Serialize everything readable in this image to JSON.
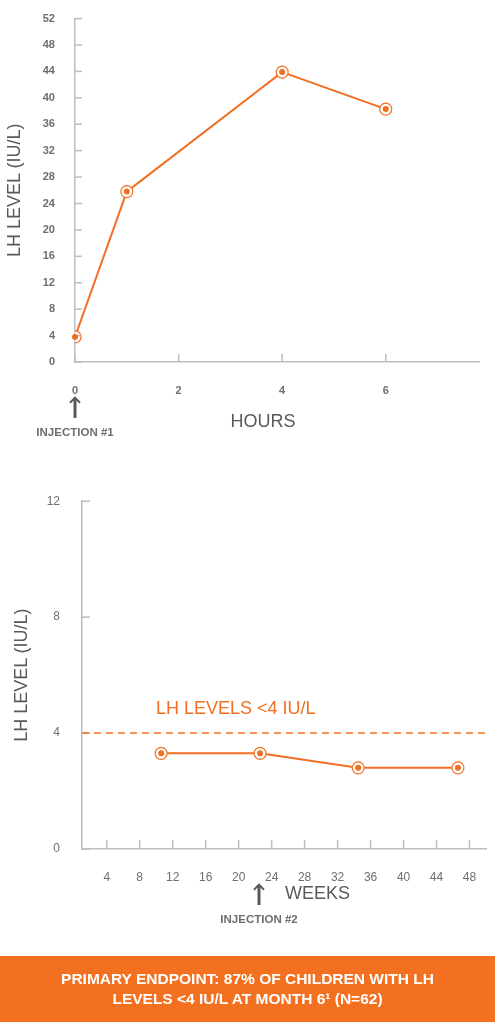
{
  "chart_data": [
    {
      "type": "line",
      "ylabel": "LH LEVEL (IU/L)",
      "xlabel": "HOURS",
      "x": [
        0,
        1,
        4,
        6
      ],
      "series": [
        {
          "color": "#f26f21",
          "values": [
            3.8,
            25.8,
            43.9,
            38.3
          ]
        }
      ],
      "xlim": [
        0,
        7.8
      ],
      "xticks": [
        0,
        2,
        4,
        6
      ],
      "ylim": [
        0,
        52
      ],
      "yticks": [
        0,
        4,
        8,
        12,
        16,
        20,
        24,
        28,
        32,
        36,
        40,
        44,
        48,
        52
      ],
      "marker": "circle",
      "line_style": "solid",
      "annotations": [
        "INJECTION #1"
      ]
    },
    {
      "type": "line",
      "ylabel": "LH LEVEL (IU/L)",
      "xlabel": "WEEKS",
      "x": [
        10.6,
        22.6,
        34.5,
        46.6
      ],
      "series": [
        {
          "color": "#f26f21",
          "values": [
            3.3,
            3.3,
            2.8,
            2.8
          ]
        }
      ],
      "xlim": [
        1,
        50
      ],
      "xticks": [
        4,
        8,
        12,
        16,
        20,
        24,
        28,
        32,
        36,
        40,
        44,
        48
      ],
      "ylim": [
        0,
        12
      ],
      "yticks": [
        0,
        4,
        8,
        12
      ],
      "marker": "circle",
      "line_style": "solid",
      "ref_lines": [
        {
          "axis": "y",
          "value": 4,
          "label": "LH LEVELS <4 IU/L",
          "color": "#f26f21",
          "line_style": "dashed"
        }
      ],
      "annotations": [
        "INJECTION #2",
        "PRIMARY ENDPOINT: 87% OF CHILDREN WITH LH LEVELS <4 IU/L AT MONTH 6¹ (N=62)"
      ]
    }
  ]
}
